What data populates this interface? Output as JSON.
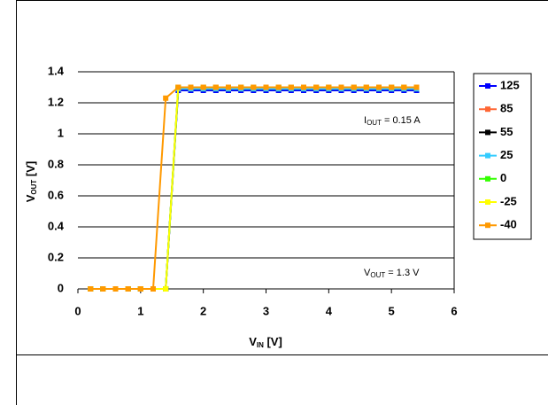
{
  "chart_data": {
    "type": "line",
    "x_label": {
      "main": "V",
      "sub": "IN",
      "rest": " [V]"
    },
    "y_label": {
      "main": "V",
      "sub": "OUT",
      "rest": " [V]"
    },
    "annotations": [
      {
        "main": "I",
        "sub": "OUT",
        "rest": " = 0.15 A"
      },
      {
        "main": "V",
        "sub": "OUT",
        "rest": " = 1.3 V"
      }
    ],
    "x": [
      0.2,
      0.4,
      0.6,
      0.8,
      1.0,
      1.2,
      1.4,
      1.6,
      1.8,
      2.0,
      2.2,
      2.4,
      2.6,
      2.8,
      3.0,
      3.2,
      3.4,
      3.6,
      3.8,
      4.0,
      4.2,
      4.4,
      4.6,
      4.8,
      5.0,
      5.2,
      5.4
    ],
    "series": [
      {
        "name": "125",
        "color": "#0000ff",
        "values": [
          0,
          0,
          0,
          0,
          0,
          0,
          0,
          1.28,
          1.28,
          1.28,
          1.28,
          1.28,
          1.28,
          1.28,
          1.28,
          1.28,
          1.28,
          1.28,
          1.28,
          1.28,
          1.28,
          1.28,
          1.28,
          1.28,
          1.28,
          1.28,
          1.28
        ]
      },
      {
        "name": "85",
        "color": "#ff6633",
        "values": [
          0,
          0,
          0,
          0,
          0,
          0,
          0,
          1.3,
          1.3,
          1.3,
          1.3,
          1.3,
          1.3,
          1.3,
          1.3,
          1.3,
          1.3,
          1.3,
          1.3,
          1.3,
          1.3,
          1.3,
          1.3,
          1.3,
          1.3,
          1.3,
          1.3
        ]
      },
      {
        "name": "55",
        "color": "#000000",
        "values": [
          0,
          0,
          0,
          0,
          0,
          0,
          0,
          1.29,
          1.29,
          1.29,
          1.29,
          1.29,
          1.29,
          1.29,
          1.29,
          1.29,
          1.29,
          1.29,
          1.29,
          1.29,
          1.29,
          1.29,
          1.29,
          1.29,
          1.29,
          1.29,
          1.29
        ]
      },
      {
        "name": "25",
        "color": "#33ccff",
        "values": [
          0,
          0,
          0,
          0,
          0,
          0,
          0,
          1.29,
          1.29,
          1.29,
          1.29,
          1.29,
          1.29,
          1.29,
          1.29,
          1.29,
          1.29,
          1.29,
          1.29,
          1.29,
          1.29,
          1.29,
          1.29,
          1.29,
          1.29,
          1.29,
          1.29
        ]
      },
      {
        "name": "0",
        "color": "#33ff00",
        "values": [
          0,
          0,
          0,
          0,
          0,
          0,
          0,
          1.3,
          1.3,
          1.3,
          1.3,
          1.3,
          1.3,
          1.3,
          1.3,
          1.3,
          1.3,
          1.3,
          1.3,
          1.3,
          1.3,
          1.3,
          1.3,
          1.3,
          1.3,
          1.3,
          1.3
        ]
      },
      {
        "name": "-25",
        "color": "#ffff00",
        "values": [
          0,
          0,
          0,
          0,
          0,
          0,
          0,
          1.3,
          1.3,
          1.3,
          1.3,
          1.3,
          1.3,
          1.3,
          1.3,
          1.3,
          1.3,
          1.3,
          1.3,
          1.3,
          1.3,
          1.3,
          1.3,
          1.3,
          1.3,
          1.3,
          1.3
        ]
      },
      {
        "name": "-40",
        "color": "#ff9900",
        "values": [
          0,
          0,
          0,
          0,
          0,
          0,
          1.23,
          1.3,
          1.3,
          1.3,
          1.3,
          1.3,
          1.3,
          1.3,
          1.3,
          1.3,
          1.3,
          1.3,
          1.3,
          1.3,
          1.3,
          1.3,
          1.3,
          1.3,
          1.3,
          1.3,
          1.3
        ]
      }
    ],
    "xlim": [
      0,
      6
    ],
    "xticks": [
      0,
      1,
      2,
      3,
      4,
      5,
      6
    ],
    "ylim": [
      0,
      1.4
    ],
    "yticks": [
      0,
      0.2,
      0.4,
      0.6,
      0.8,
      1,
      1.2,
      1.4
    ],
    "grid": true,
    "legend": "right"
  }
}
